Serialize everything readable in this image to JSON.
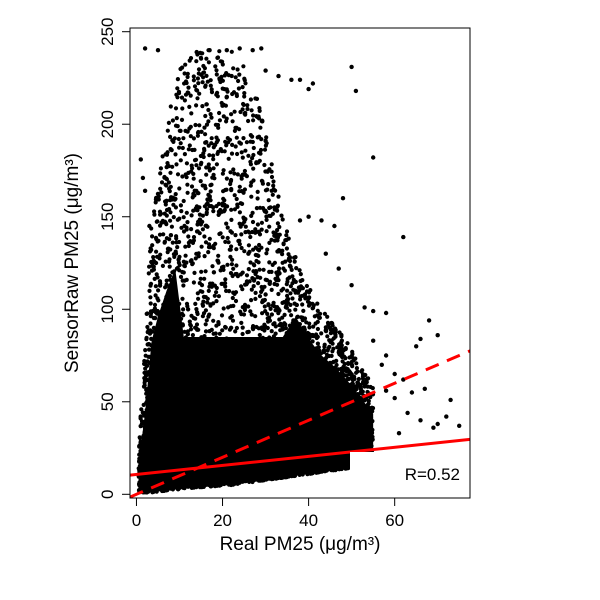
{
  "chart_data": {
    "type": "scatter",
    "title": "",
    "xlabel": "Real PM25 (μg/m³)",
    "ylabel": "SensorRaw PM25 (μg/m³)",
    "xlim": [
      -1.5,
      77.5
    ],
    "ylim": [
      -2,
      252
    ],
    "x_ticks": [
      0,
      20,
      40,
      60
    ],
    "y_ticks": [
      0,
      50,
      100,
      150,
      200,
      250
    ],
    "grid": false,
    "legend": "none",
    "point_color": "#000000",
    "line_color": "#ff0000",
    "annotation": "R=0.52",
    "lines": [
      {
        "style": "solid",
        "intercept": 10.7,
        "slope": 0.245
      },
      {
        "style": "dashed",
        "intercept": 0,
        "slope": 1
      }
    ],
    "scatter_outline": [
      {
        "x": 0.5,
        "ymin": 1,
        "ymax": 30
      },
      {
        "x": 2,
        "ymin": 1,
        "ymax": 80
      },
      {
        "x": 3.5,
        "ymin": 1,
        "ymax": 150
      },
      {
        "x": 5,
        "ymin": 1.5,
        "ymax": 175
      },
      {
        "x": 7,
        "ymin": 2,
        "ymax": 200
      },
      {
        "x": 9,
        "ymin": 2.5,
        "ymax": 222
      },
      {
        "x": 11,
        "ymin": 3,
        "ymax": 235
      },
      {
        "x": 13,
        "ymin": 3.5,
        "ymax": 240
      },
      {
        "x": 16,
        "ymin": 4,
        "ymax": 240
      },
      {
        "x": 19,
        "ymin": 4.5,
        "ymax": 240
      },
      {
        "x": 22,
        "ymin": 5,
        "ymax": 240
      },
      {
        "x": 25,
        "ymin": 6,
        "ymax": 232
      },
      {
        "x": 28,
        "ymin": 7,
        "ymax": 215
      },
      {
        "x": 31,
        "ymin": 8,
        "ymax": 185
      },
      {
        "x": 34,
        "ymin": 9,
        "ymax": 150
      },
      {
        "x": 37,
        "ymin": 10,
        "ymax": 128
      },
      {
        "x": 40,
        "ymin": 11,
        "ymax": 112
      },
      {
        "x": 43,
        "ymin": 12,
        "ymax": 100
      },
      {
        "x": 46,
        "ymin": 13,
        "ymax": 92
      },
      {
        "x": 49,
        "ymin": 14,
        "ymax": 82
      },
      {
        "x": 52,
        "ymin": 15,
        "ymax": 70
      },
      {
        "x": 55,
        "ymin": 16,
        "ymax": 58
      }
    ],
    "scatter_points": [
      [
        2,
        241
      ],
      [
        5,
        240
      ],
      [
        14,
        239
      ],
      [
        17,
        240
      ],
      [
        21,
        240
      ],
      [
        24,
        241
      ],
      [
        27,
        240
      ],
      [
        29,
        241
      ],
      [
        30,
        229
      ],
      [
        33,
        226
      ],
      [
        36,
        224
      ],
      [
        38,
        224
      ],
      [
        40,
        219
      ],
      [
        41,
        222
      ],
      [
        50,
        231
      ],
      [
        51,
        218
      ],
      [
        55,
        182
      ],
      [
        48,
        160
      ],
      [
        46,
        145
      ],
      [
        43,
        148
      ],
      [
        40,
        150
      ],
      [
        38,
        148
      ],
      [
        62,
        139
      ],
      [
        44,
        130
      ],
      [
        47,
        122
      ],
      [
        50,
        113
      ],
      [
        53,
        101
      ],
      [
        55,
        99
      ],
      [
        58,
        98
      ],
      [
        65,
        80
      ],
      [
        66,
        84
      ],
      [
        68,
        94
      ],
      [
        70,
        86
      ],
      [
        73,
        51
      ],
      [
        60,
        65
      ],
      [
        62,
        62
      ],
      [
        58,
        75
      ],
      [
        55,
        83
      ],
      [
        66,
        40
      ],
      [
        70,
        38
      ],
      [
        72,
        42
      ],
      [
        75,
        37
      ],
      [
        69,
        36
      ],
      [
        63,
        44
      ],
      [
        61,
        33
      ],
      [
        58,
        56
      ],
      [
        57,
        70
      ],
      [
        60,
        52
      ],
      [
        54,
        44
      ],
      [
        52,
        30
      ],
      [
        64,
        55
      ],
      [
        67,
        57
      ],
      [
        1,
        181
      ],
      [
        2,
        164
      ],
      [
        1.5,
        171
      ],
      [
        3,
        145
      ],
      [
        4,
        123
      ],
      [
        35,
        104
      ],
      [
        30,
        108
      ],
      [
        10,
        60
      ],
      [
        15,
        70
      ],
      [
        20,
        55
      ],
      [
        25,
        65
      ],
      [
        30,
        75
      ],
      [
        35,
        68
      ],
      [
        40,
        60
      ],
      [
        45,
        55
      ],
      [
        12,
        100
      ],
      [
        18,
        120
      ],
      [
        22,
        90
      ],
      [
        26,
        130
      ],
      [
        8,
        140
      ],
      [
        16,
        190
      ],
      [
        20,
        210
      ]
    ]
  }
}
